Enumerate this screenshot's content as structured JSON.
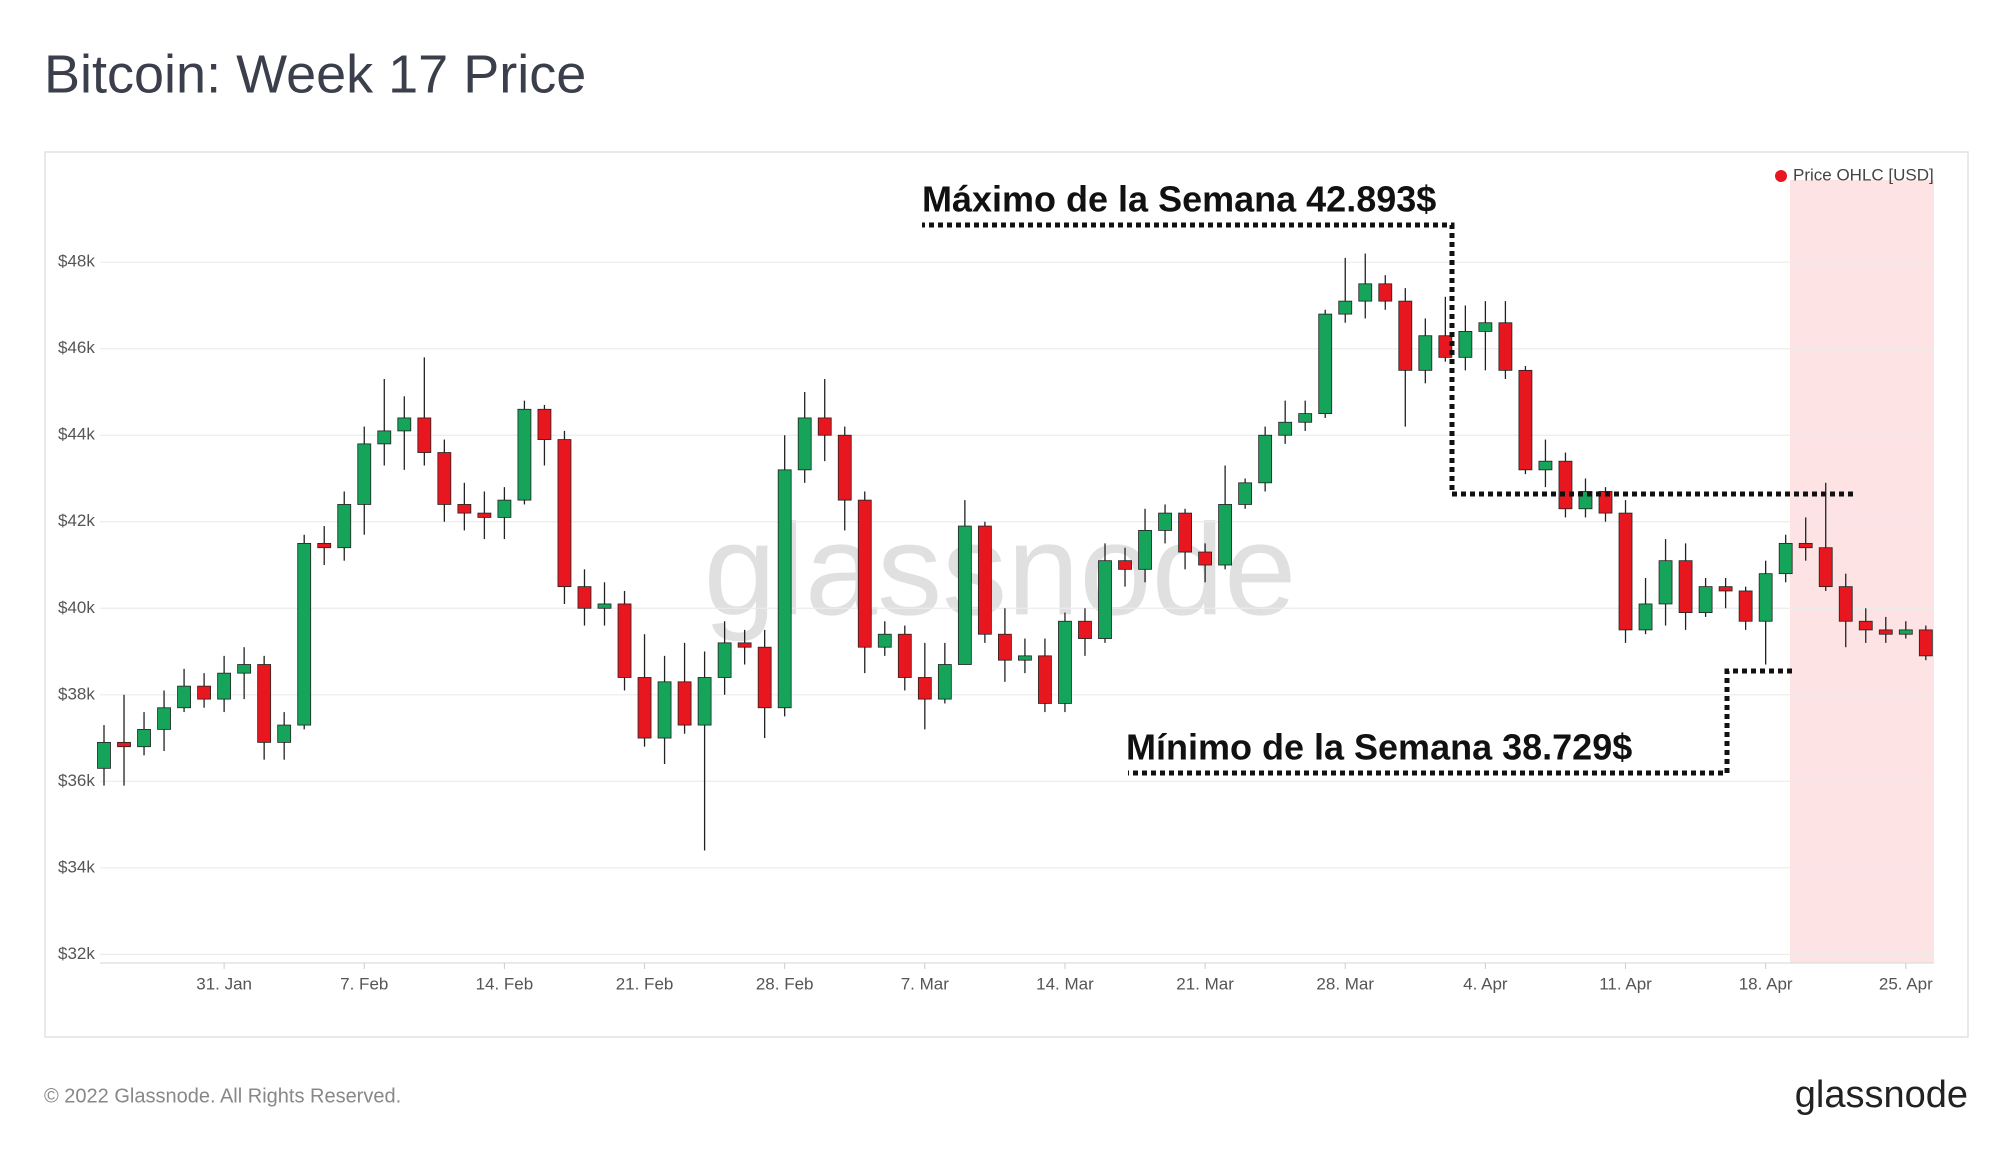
{
  "chart_data": {
    "type": "candlestick",
    "title": "Bitcoin: Week 17 Price",
    "footer": "© 2022 Glassnode. All Rights Reserved.",
    "brand": "glassnode",
    "watermark": "glassnode",
    "annotations": [
      "Máximo de la Semana 42.893$",
      "Mínimo de la Semana 38.729$"
    ],
    "legend": "top-right",
    "grid": true,
    "x": [
      "25. Jan",
      "26. Jan",
      "27. Jan",
      "28. Jan",
      "29. Jan",
      "30. Jan",
      "31. Jan",
      "1. Feb",
      "2. Feb",
      "3. Feb",
      "4. Feb",
      "5. Feb",
      "6. Feb",
      "7. Feb",
      "8. Feb",
      "9. Feb",
      "10. Feb",
      "11. Feb",
      "12. Feb",
      "13. Feb",
      "14. Feb",
      "15. Feb",
      "16. Feb",
      "17. Feb",
      "18. Feb",
      "19. Feb",
      "20. Feb",
      "21. Feb",
      "22. Feb",
      "23. Feb",
      "24. Feb",
      "25. Feb",
      "26. Feb",
      "27. Feb",
      "28. Feb",
      "1. Mar",
      "2. Mar",
      "3. Mar",
      "4. Mar",
      "5. Mar",
      "6. Mar",
      "7. Mar",
      "8. Mar",
      "9. Mar",
      "10. Mar",
      "11. Mar",
      "12. Mar",
      "13. Mar",
      "14. Mar",
      "15. Mar",
      "16. Mar",
      "17. Mar",
      "18. Mar",
      "19. Mar",
      "20. Mar",
      "21. Mar",
      "22. Mar",
      "23. Mar",
      "24. Mar",
      "25. Mar",
      "26. Mar",
      "27. Mar",
      "28. Mar",
      "29. Mar",
      "30. Mar",
      "31. Mar",
      "1. Apr",
      "2. Apr",
      "3. Apr",
      "4. Apr",
      "5. Apr",
      "6. Apr",
      "7. Apr",
      "8. Apr",
      "9. Apr",
      "10. Apr",
      "11. Apr",
      "12. Apr",
      "13. Apr",
      "14. Apr",
      "15. Apr",
      "16. Apr",
      "17. Apr",
      "18. Apr",
      "19. Apr",
      "20. Apr",
      "21. Apr",
      "22. Apr",
      "23. Apr",
      "24. Apr",
      "25. Apr",
      "26. Apr"
    ],
    "xticks": [
      "31. Jan",
      "7. Feb",
      "14. Feb",
      "21. Feb",
      "28. Feb",
      "7. Mar",
      "14. Mar",
      "21. Mar",
      "28. Mar",
      "4. Apr",
      "11. Apr",
      "18. Apr",
      "25. Apr"
    ],
    "ylim": [
      31800,
      49900
    ],
    "yticks": [
      {
        "value": 32000,
        "label": "$32k"
      },
      {
        "value": 34000,
        "label": "$34k"
      },
      {
        "value": 36000,
        "label": "$36k"
      },
      {
        "value": 38000,
        "label": "$38k"
      },
      {
        "value": 40000,
        "label": "$40k"
      },
      {
        "value": 42000,
        "label": "$42k"
      },
      {
        "value": 44000,
        "label": "$44k"
      },
      {
        "value": 46000,
        "label": "$46k"
      },
      {
        "value": 48000,
        "label": "$48k"
      }
    ],
    "series": [
      {
        "name": "Price OHLC [USD]",
        "color": "#e8171f",
        "up_color": "#16a35a",
        "down_color": "#e8171f",
        "open": [
          36300,
          36900,
          36800,
          37200,
          37700,
          38200,
          37900,
          38500,
          38700,
          36900,
          37300,
          41500,
          41400,
          42400,
          43800,
          44100,
          44400,
          43600,
          42400,
          42200,
          42100,
          42500,
          44600,
          43900,
          40500,
          40000,
          40100,
          38400,
          37000,
          38300,
          37300,
          38400,
          39200,
          39100,
          37700,
          43200,
          44400,
          44000,
          42500,
          39100,
          39400,
          38400,
          37900,
          38700,
          41900,
          39400,
          38800,
          38900,
          37800,
          39700,
          39300,
          41100,
          40900,
          41800,
          42200,
          41300,
          41000,
          42400,
          42900,
          44000,
          44300,
          44500,
          46800,
          47100,
          47500,
          47100,
          45500,
          46300,
          45800,
          46400,
          46600,
          45500,
          43200,
          43400,
          42300,
          42700,
          42200,
          39500,
          40100,
          41100,
          39900,
          40500,
          40400,
          39700,
          40800,
          41500,
          41400,
          40500,
          39700,
          39500,
          39400,
          39500
        ],
        "high": [
          37300,
          38000,
          37600,
          38100,
          38600,
          38500,
          38900,
          39100,
          38900,
          37600,
          41700,
          41900,
          42700,
          44200,
          45300,
          44900,
          45800,
          43900,
          42900,
          42700,
          42800,
          44800,
          44700,
          44100,
          40900,
          40600,
          40400,
          39400,
          38900,
          39200,
          39000,
          39700,
          39500,
          39500,
          44000,
          45000,
          45300,
          44200,
          42700,
          39700,
          39600,
          39200,
          39200,
          42500,
          42000,
          40000,
          39300,
          39300,
          39900,
          40000,
          41500,
          41400,
          42300,
          42400,
          42300,
          41500,
          43300,
          43000,
          44200,
          44800,
          44800,
          46900,
          48100,
          48200,
          47700,
          47400,
          46700,
          47200,
          47000,
          47100,
          47100,
          45600,
          43900,
          43600,
          43000,
          42800,
          42500,
          40700,
          41600,
          41500,
          40700,
          40700,
          40500,
          41100,
          41700,
          42100,
          42900,
          40800,
          40000,
          39800,
          39700,
          39600
        ],
        "low": [
          35900,
          35900,
          36600,
          36700,
          37600,
          37700,
          37600,
          37900,
          36500,
          36500,
          37200,
          41000,
          41100,
          41700,
          43300,
          43200,
          43300,
          42000,
          41800,
          41600,
          41600,
          42400,
          43300,
          40100,
          39600,
          39600,
          38100,
          36800,
          36400,
          37100,
          34400,
          38000,
          38700,
          37000,
          37500,
          42900,
          43400,
          41800,
          38500,
          38900,
          38100,
          37200,
          37800,
          38700,
          39200,
          38300,
          38500,
          37600,
          37600,
          38900,
          39200,
          40500,
          40600,
          41500,
          40900,
          40600,
          40900,
          42300,
          42700,
          43800,
          44100,
          44400,
          46600,
          46700,
          46900,
          44200,
          45200,
          45700,
          45500,
          45500,
          45300,
          43100,
          42800,
          42100,
          42100,
          42000,
          39200,
          39400,
          39600,
          39500,
          39800,
          40000,
          39500,
          38700,
          40600,
          41100,
          40400,
          39100,
          39200,
          39200,
          39300,
          38800
        ],
        "close": [
          36900,
          36800,
          37200,
          37700,
          38200,
          37900,
          38500,
          38700,
          36900,
          37300,
          41500,
          41400,
          42400,
          43800,
          44100,
          44400,
          43600,
          42400,
          42200,
          42100,
          42500,
          44600,
          43900,
          40500,
          40000,
          40100,
          38400,
          37000,
          38300,
          37300,
          38400,
          39200,
          39100,
          37700,
          43200,
          44400,
          44000,
          42500,
          39100,
          39400,
          38400,
          37900,
          38700,
          41900,
          39400,
          38800,
          38900,
          37800,
          39700,
          39300,
          41100,
          40900,
          41800,
          42200,
          41300,
          41000,
          42400,
          42900,
          44000,
          44300,
          44500,
          46800,
          47100,
          47500,
          47100,
          45500,
          46300,
          45800,
          46400,
          46600,
          45500,
          43200,
          43400,
          42300,
          42700,
          42200,
          39500,
          40100,
          41100,
          39900,
          40500,
          40400,
          39700,
          40800,
          41500,
          41400,
          40500,
          39700,
          39500,
          39400,
          39500,
          38900
        ]
      }
    ]
  }
}
